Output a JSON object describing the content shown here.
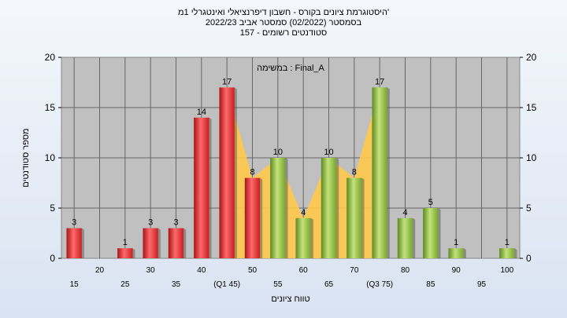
{
  "chart_data": {
    "type": "bar",
    "title_lines": [
      "היסטוגרמת ציונים בקורס - חשבון דיפרנציאלי ואינטגרלי 1מ'",
      "בסמסטר  (02/2022)  סמסטר אביב 2022/23",
      "סטודנטים רשומים - 157"
    ],
    "annotation": "במשימה : Final_A",
    "ylabel": "מספר סטודנטים",
    "xlabel": "טווח ציונים",
    "ylim": [
      0,
      20
    ],
    "yticks": [
      0,
      5,
      10,
      15,
      20
    ],
    "x_tick_labels": [
      "15",
      "20",
      "25",
      "30",
      "35",
      "40",
      "(Q1 45)",
      "50",
      "55",
      "60",
      "65",
      "70",
      "(Q3 75)",
      "80",
      "85",
      "90",
      "95",
      "100"
    ],
    "categories": [
      15,
      20,
      25,
      30,
      35,
      40,
      45,
      50,
      55,
      60,
      65,
      70,
      75,
      80,
      85,
      90,
      95,
      100
    ],
    "values": [
      3,
      0,
      1,
      3,
      3,
      14,
      17,
      8,
      10,
      4,
      10,
      8,
      17,
      4,
      5,
      1,
      0,
      1
    ],
    "bar_colors": [
      "red",
      "red",
      "red",
      "red",
      "red",
      "red",
      "red",
      "red",
      "green",
      "green",
      "green",
      "green",
      "green",
      "green",
      "green",
      "green",
      "green",
      "green"
    ],
    "colors": {
      "red": "#e8262a",
      "green": "#8ab83a",
      "band": "#ffc94a",
      "plot_bg": "#c0c0c0"
    },
    "grid": true,
    "shaded_band_between": [
      45,
      75
    ]
  }
}
